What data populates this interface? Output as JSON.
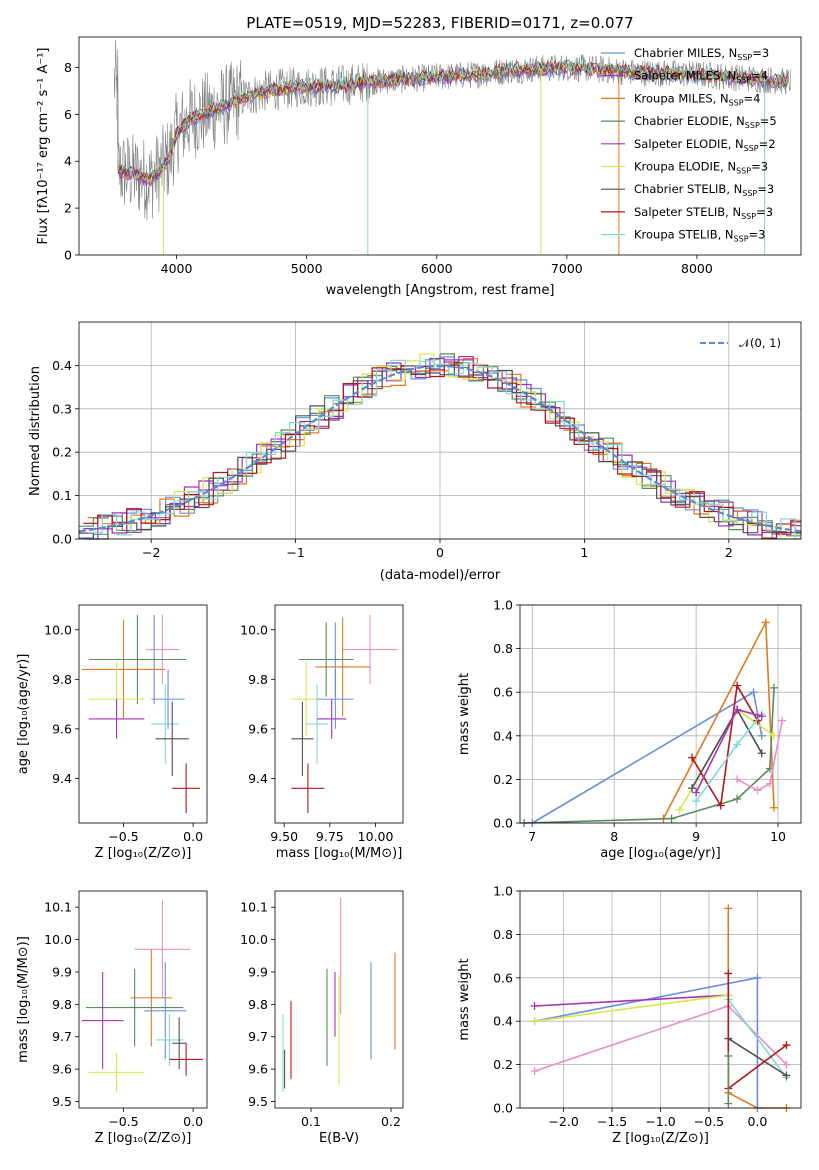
{
  "chart_data": [
    {
      "id": "spectrum",
      "type": "line",
      "title": "PLATE=0519, MJD=52283, FIBERID=0171, z=0.077",
      "xlabel": "wavelength [Angstrom, rest frame]",
      "ylabel": "Flux [fλ10⁻¹⁷ erg cm⁻² s⁻¹ A⁻¹]",
      "xlim": [
        3250,
        8800
      ],
      "ylim": [
        0,
        9.3
      ],
      "xticks": [
        4000,
        5000,
        6000,
        7000,
        8000
      ],
      "yticks": [
        0,
        2,
        4,
        6,
        8
      ],
      "grid": false,
      "legend_position": "right",
      "data_color": "#808080",
      "series": [
        {
          "name": "Chabrier MILES, N_SSP=3",
          "color": "#6a8fd8"
        },
        {
          "name": "Salpeter MILES, N_SSP=4",
          "color": "#9b2fb0"
        },
        {
          "name": "Kroupa MILES, N_SSP=4",
          "color": "#e07a1f"
        },
        {
          "name": "Chabrier ELODIE, N_SSP=5",
          "color": "#5c8a5c"
        },
        {
          "name": "Salpeter ELODIE, N_SSP=2",
          "color": "#a833b9"
        },
        {
          "name": "Kroupa ELODIE, N_SSP=3",
          "color": "#d4e84a"
        },
        {
          "name": "Chabrier STELIB, N_SSP=3",
          "color": "#505050"
        },
        {
          "name": "Salpeter STELIB, N_SSP=3",
          "color": "#b01818"
        },
        {
          "name": "Kroupa STELIB, N_SSP=3",
          "color": "#7fd8d8"
        }
      ],
      "model_envelope": [
        [
          3550,
          3.6
        ],
        [
          3700,
          3.4
        ],
        [
          3800,
          3.2
        ],
        [
          3900,
          3.8
        ],
        [
          3950,
          4.2
        ],
        [
          4000,
          5.2
        ],
        [
          4100,
          5.8
        ],
        [
          4300,
          6.2
        ],
        [
          4500,
          6.7
        ],
        [
          4700,
          7.0
        ],
        [
          5000,
          7.2
        ],
        [
          5200,
          7.2
        ],
        [
          5500,
          7.4
        ],
        [
          5800,
          7.5
        ],
        [
          6000,
          7.6
        ],
        [
          6300,
          7.7
        ],
        [
          6600,
          7.9
        ],
        [
          7000,
          8.0
        ],
        [
          7300,
          7.9
        ],
        [
          7500,
          7.8
        ],
        [
          8000,
          7.7
        ],
        [
          8500,
          7.5
        ],
        [
          8700,
          7.4
        ]
      ]
    },
    {
      "id": "residuals",
      "type": "line",
      "xlabel": "(data-model)/error",
      "ylabel": "Normed distribution",
      "xlim": [
        -2.5,
        2.5
      ],
      "ylim": [
        0,
        0.5
      ],
      "xticks": [
        -2,
        -1,
        0,
        1,
        2
      ],
      "ytick_values": [
        0.0,
        0.1,
        0.2,
        0.3,
        0.4
      ],
      "ytick_labels": [
        "0.0",
        "0.1",
        "0.2",
        "0.3",
        "0.4"
      ],
      "xtick_labels": [
        "−2",
        "−1",
        "0",
        "1",
        "2"
      ],
      "grid": true,
      "legend": "𝒩(0, 1)",
      "legend_position": "top-right",
      "gauss_color": "#5b8bd6"
    },
    {
      "id": "age-vs-Z",
      "type": "scatter",
      "xlabel": "Z [log₁₀(Z/Z⊙)]",
      "ylabel": "age  [log₁₀(age/yr)]",
      "xlim": [
        -0.82,
        0.1
      ],
      "ylim": [
        9.22,
        10.1
      ],
      "xticks": [
        -0.5,
        0.0
      ],
      "xtick_labels": [
        "−0.5",
        "0.0"
      ],
      "yticks": [
        9.4,
        9.6,
        9.8,
        10.0
      ],
      "ytick_labels": [
        "9.4",
        "9.6",
        "9.8",
        "10.0"
      ],
      "points": [
        {
          "x": -0.5,
          "y": 9.84,
          "xerr": 0.3,
          "yerr": 0.2,
          "color": "#e07a1f"
        },
        {
          "x": -0.22,
          "y": 9.92,
          "xerr": 0.12,
          "yerr": 0.14,
          "color": "#e88fc8"
        },
        {
          "x": -0.28,
          "y": 9.88,
          "xerr": 0.22,
          "yerr": 0.18,
          "color": "#6a8fd8"
        },
        {
          "x": -0.4,
          "y": 9.88,
          "xerr": 0.35,
          "yerr": 0.18,
          "color": "#5c8a5c"
        },
        {
          "x": -0.55,
          "y": 9.72,
          "xerr": 0.2,
          "yerr": 0.15,
          "color": "#d4e84a"
        },
        {
          "x": -0.55,
          "y": 9.64,
          "xerr": 0.2,
          "yerr": 0.08,
          "color": "#a833b9"
        },
        {
          "x": -0.2,
          "y": 9.62,
          "xerr": 0.1,
          "yerr": 0.16,
          "color": "#7fd8d8"
        },
        {
          "x": -0.18,
          "y": 9.72,
          "xerr": 0.12,
          "yerr": 0.12,
          "color": "#6a8fd8"
        },
        {
          "x": -0.15,
          "y": 9.56,
          "xerr": 0.12,
          "yerr": 0.15,
          "color": "#505050"
        },
        {
          "x": -0.05,
          "y": 9.36,
          "xerr": 0.1,
          "yerr": 0.1,
          "color": "#b01818"
        }
      ]
    },
    {
      "id": "age-vs-mass",
      "type": "scatter",
      "xlabel": "mass [log₁₀(M/M⊙)]",
      "xlim": [
        9.45,
        10.15
      ],
      "ylim": [
        9.22,
        10.1
      ],
      "xticks": [
        9.5,
        9.75,
        10.0
      ],
      "xtick_labels": [
        "9.50",
        "9.75",
        "10.00"
      ],
      "yticks": [
        9.4,
        9.6,
        9.8,
        10.0
      ],
      "ytick_labels": [
        "9.4",
        "9.6",
        "9.8",
        "10.0"
      ],
      "points": [
        {
          "x": 9.97,
          "y": 9.92,
          "xerr": 0.15,
          "yerr": 0.14,
          "color": "#e88fc8"
        },
        {
          "x": 9.82,
          "y": 9.85,
          "xerr": 0.15,
          "yerr": 0.2,
          "color": "#e07a1f"
        },
        {
          "x": 9.78,
          "y": 9.88,
          "xerr": 0.1,
          "yerr": 0.15,
          "color": "#6a8fd8"
        },
        {
          "x": 9.73,
          "y": 9.88,
          "xerr": 0.15,
          "yerr": 0.15,
          "color": "#5c8a5c"
        },
        {
          "x": 9.62,
          "y": 9.72,
          "xerr": 0.08,
          "yerr": 0.15,
          "color": "#d4e84a"
        },
        {
          "x": 9.78,
          "y": 9.72,
          "xerr": 0.1,
          "yerr": 0.12,
          "color": "#6a8fd8"
        },
        {
          "x": 9.68,
          "y": 9.62,
          "xerr": 0.06,
          "yerr": 0.16,
          "color": "#7fd8d8"
        },
        {
          "x": 9.76,
          "y": 9.64,
          "xerr": 0.08,
          "yerr": 0.08,
          "color": "#a833b9"
        },
        {
          "x": 9.6,
          "y": 9.56,
          "xerr": 0.06,
          "yerr": 0.15,
          "color": "#505050"
        },
        {
          "x": 9.63,
          "y": 9.36,
          "xerr": 0.09,
          "yerr": 0.1,
          "color": "#b01818"
        }
      ]
    },
    {
      "id": "weight-vs-age",
      "type": "line",
      "xlabel": "age  [log₁₀(age/yr)]",
      "ylabel": "mass weight",
      "xlim": [
        6.85,
        10.28
      ],
      "ylim": [
        0,
        1
      ],
      "xticks": [
        7,
        8,
        9,
        10
      ],
      "yticks": [
        0.0,
        0.2,
        0.4,
        0.6,
        0.8,
        1.0
      ],
      "ytick_labels": [
        "0.0",
        "0.2",
        "0.4",
        "0.6",
        "0.8",
        "1.0"
      ],
      "grid": true,
      "series": [
        {
          "color": "#6a8fd8",
          "points": [
            [
              7.0,
              0.0
            ],
            [
              9.7,
              0.6
            ],
            [
              9.8,
              0.4
            ]
          ]
        },
        {
          "color": "#e07a1f",
          "points": [
            [
              8.6,
              0.02
            ],
            [
              9.85,
              0.92
            ],
            [
              9.95,
              0.07
            ]
          ]
        },
        {
          "color": "#5c8a5c",
          "points": [
            [
              6.9,
              0.0
            ],
            [
              8.7,
              0.02
            ],
            [
              9.5,
              0.11
            ],
            [
              9.9,
              0.25
            ],
            [
              9.95,
              0.62
            ]
          ]
        },
        {
          "color": "#d4e84a",
          "points": [
            [
              8.8,
              0.06
            ],
            [
              9.5,
              0.52
            ],
            [
              9.95,
              0.4
            ]
          ]
        },
        {
          "color": "#505050",
          "points": [
            [
              8.95,
              0.16
            ],
            [
              9.5,
              0.52
            ],
            [
              9.8,
              0.32
            ]
          ]
        },
        {
          "color": "#b01818",
          "points": [
            [
              8.95,
              0.3
            ],
            [
              9.3,
              0.08
            ],
            [
              9.5,
              0.63
            ],
            [
              9.75,
              0.47
            ]
          ]
        },
        {
          "color": "#7fd8d8",
          "points": [
            [
              9.0,
              0.1
            ],
            [
              9.5,
              0.36
            ],
            [
              9.8,
              0.5
            ]
          ]
        },
        {
          "color": "#a833b9",
          "points": [
            [
              9.0,
              0.14
            ],
            [
              9.5,
              0.52
            ],
            [
              9.8,
              0.49
            ]
          ]
        },
        {
          "color": "#e88fc8",
          "points": [
            [
              9.5,
              0.2
            ],
            [
              9.75,
              0.15
            ],
            [
              9.9,
              0.18
            ],
            [
              10.05,
              0.47
            ]
          ]
        }
      ]
    },
    {
      "id": "mass-vs-Z",
      "type": "scatter",
      "xlabel": "Z [log₁₀(Z/Z⊙)]",
      "ylabel": "mass [log₁₀(M/M⊙)]",
      "xlim": [
        -0.82,
        0.1
      ],
      "ylim": [
        9.48,
        10.15
      ],
      "xticks": [
        -0.5,
        0.0
      ],
      "xtick_labels": [
        "−0.5",
        "0.0"
      ],
      "yticks": [
        9.5,
        9.6,
        9.7,
        9.8,
        9.9,
        10.0,
        10.1
      ],
      "ytick_labels": [
        "9.5",
        "9.6",
        "9.7",
        "9.8",
        "9.9",
        "10.0",
        "10.1"
      ],
      "points": [
        {
          "x": -0.22,
          "y": 9.97,
          "xerr": 0.2,
          "yerr": 0.15,
          "color": "#e88fc8"
        },
        {
          "x": -0.3,
          "y": 9.82,
          "xerr": 0.15,
          "yerr": 0.15,
          "color": "#e07a1f"
        },
        {
          "x": -0.42,
          "y": 9.79,
          "xerr": 0.35,
          "yerr": 0.12,
          "color": "#5c8a5c"
        },
        {
          "x": -0.2,
          "y": 9.78,
          "xerr": 0.15,
          "yerr": 0.15,
          "color": "#6a8fd8"
        },
        {
          "x": -0.65,
          "y": 9.75,
          "xerr": 0.15,
          "yerr": 0.15,
          "color": "#a833b9"
        },
        {
          "x": -0.17,
          "y": 9.69,
          "xerr": 0.1,
          "yerr": 0.08,
          "color": "#7fd8d8"
        },
        {
          "x": -0.1,
          "y": 9.68,
          "xerr": 0.05,
          "yerr": 0.08,
          "color": "#505050"
        },
        {
          "x": -0.05,
          "y": 9.63,
          "xerr": 0.12,
          "yerr": 0.05,
          "color": "#b01818"
        },
        {
          "x": -0.55,
          "y": 9.59,
          "xerr": 0.2,
          "yerr": 0.06,
          "color": "#d4e84a"
        }
      ]
    },
    {
      "id": "mass-vs-ebv",
      "type": "scatter",
      "xlabel": "E(B-V)",
      "xlim": [
        0.055,
        0.215
      ],
      "ylim": [
        9.48,
        10.15
      ],
      "xticks": [
        0.1,
        0.2
      ],
      "xtick_labels": [
        "0.1",
        "0.2"
      ],
      "yticks": [
        9.5,
        9.6,
        9.7,
        9.8,
        9.9,
        10.0,
        10.1
      ],
      "ytick_labels": [
        "9.5",
        "9.6",
        "9.7",
        "9.8",
        "9.9",
        "10.0",
        "10.1"
      ],
      "points": [
        {
          "x": 0.065,
          "y": 9.65,
          "yerr": 0.12,
          "color": "#7fd8d8"
        },
        {
          "x": 0.067,
          "y": 9.6,
          "yerr": 0.06,
          "color": "#505050"
        },
        {
          "x": 0.075,
          "y": 9.69,
          "yerr": 0.12,
          "color": "#b01818"
        },
        {
          "x": 0.12,
          "y": 9.76,
          "yerr": 0.15,
          "color": "#5c8a5c"
        },
        {
          "x": 0.13,
          "y": 9.8,
          "yerr": 0.1,
          "color": "#a833b9"
        },
        {
          "x": 0.135,
          "y": 9.72,
          "yerr": 0.17,
          "color": "#d4e84a"
        },
        {
          "x": 0.137,
          "y": 9.95,
          "yerr": 0.18,
          "color": "#e88fc8"
        },
        {
          "x": 0.175,
          "y": 9.78,
          "yerr": 0.15,
          "color": "#6a8fd8"
        },
        {
          "x": 0.205,
          "y": 9.81,
          "yerr": 0.15,
          "color": "#e07a1f"
        }
      ]
    },
    {
      "id": "weight-vs-Z",
      "type": "line",
      "xlabel": "Z [log₁₀(Z/Z⊙)]",
      "ylabel": "mass weight",
      "xlim": [
        -2.45,
        0.45
      ],
      "ylim": [
        0,
        1
      ],
      "xticks": [
        -2.0,
        -1.5,
        -1.0,
        -0.5,
        0.0
      ],
      "xtick_labels": [
        "−2.0",
        "−1.5",
        "−1.0",
        "−0.5",
        "0.0"
      ],
      "yticks": [
        0.0,
        0.2,
        0.4,
        0.6,
        0.8,
        1.0
      ],
      "ytick_labels": [
        "0.0",
        "0.2",
        "0.4",
        "0.6",
        "0.8",
        "1.0"
      ],
      "grid": true,
      "series": [
        {
          "color": "#e07a1f",
          "points": [
            [
              -0.3,
              0.92
            ],
            [
              -0.3,
              0.07
            ],
            [
              0.0,
              0.0
            ],
            [
              0.3,
              0.0
            ]
          ]
        },
        {
          "color": "#6a8fd8",
          "points": [
            [
              -2.3,
              0.4
            ],
            [
              0.0,
              0.6
            ],
            [
              0.0,
              0.0
            ]
          ]
        },
        {
          "color": "#a833b9",
          "points": [
            [
              -2.3,
              0.47
            ],
            [
              -0.3,
              0.52
            ]
          ]
        },
        {
          "color": "#d4e84a",
          "points": [
            [
              -2.3,
              0.4
            ],
            [
              -0.3,
              0.52
            ]
          ]
        },
        {
          "color": "#e88fc8",
          "points": [
            [
              -2.3,
              0.17
            ],
            [
              -0.3,
              0.47
            ],
            [
              0.3,
              0.2
            ]
          ]
        },
        {
          "color": "#7fd8d8",
          "points": [
            [
              -0.3,
              0.5
            ],
            [
              0.3,
              0.14
            ]
          ]
        },
        {
          "color": "#505050",
          "points": [
            [
              -0.3,
              0.32
            ],
            [
              0.3,
              0.15
            ]
          ]
        },
        {
          "color": "#b01818",
          "points": [
            [
              -0.3,
              0.62
            ],
            [
              -0.3,
              0.09
            ],
            [
              0.3,
              0.29
            ]
          ]
        },
        {
          "color": "#5c8a5c",
          "points": [
            [
              -0.3,
              0.24
            ],
            [
              -0.3,
              0.02
            ]
          ]
        }
      ]
    }
  ]
}
